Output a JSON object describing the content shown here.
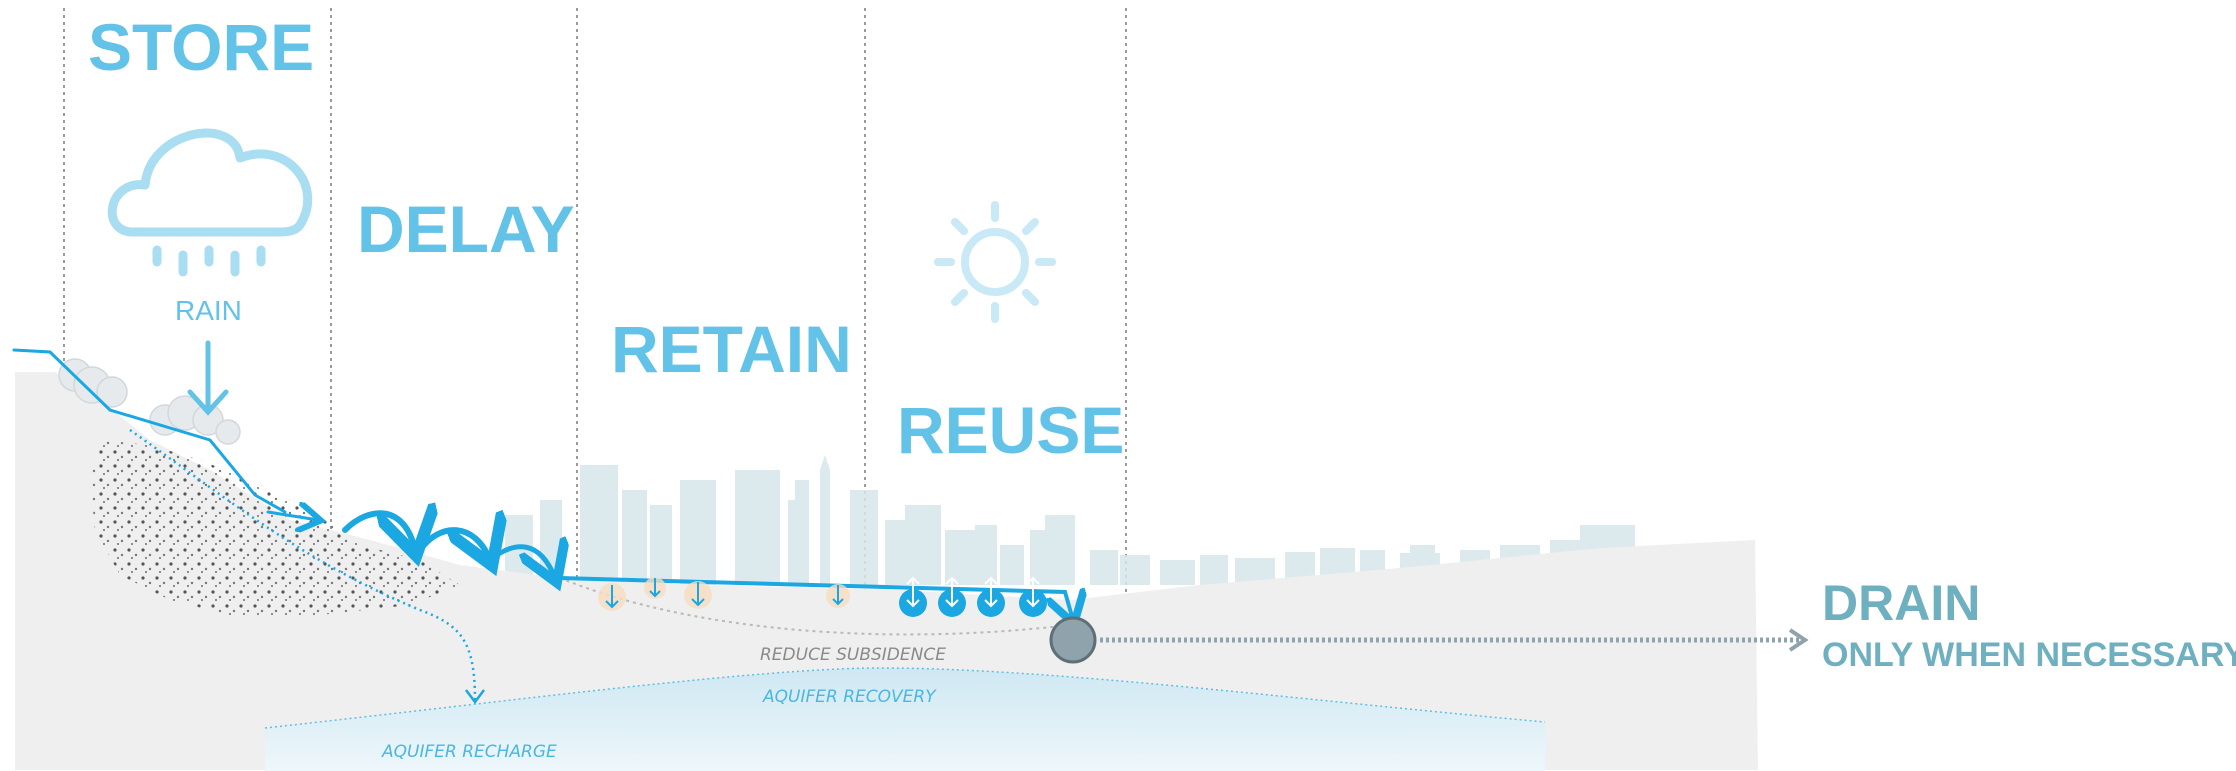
{
  "stages": {
    "store": "STORE",
    "rain": "RAIN",
    "delay": "DELAY",
    "retain": "RETAIN",
    "reuse": "REUSE",
    "drain": "DRAIN",
    "drain_sub": "ONLY WHEN NECESSARY"
  },
  "annotations": {
    "reduce_subsidence": "REDUCE SUBSIDENCE",
    "aquifer_recovery": "AQUIFER RECOVERY",
    "aquifer_recharge": "AQUIFER RECHARGE"
  },
  "colors": {
    "heading_blue": "#62c2e8",
    "light_blue": "#a9ddf1",
    "water_blue": "#1aa7e2",
    "drain_teal": "#6eafc0",
    "ground": "#efefef",
    "aquifer": "#d7ecf4",
    "pipe": "#8fa3ad"
  },
  "icons": [
    "rain-cloud-icon",
    "sun-icon",
    "down-arrow-icon",
    "drain-pipe-icon"
  ]
}
